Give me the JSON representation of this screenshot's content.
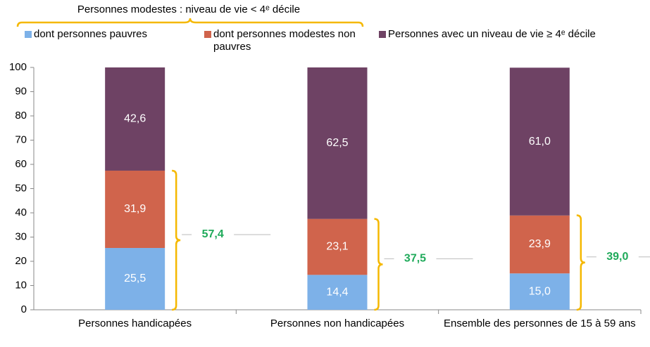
{
  "chart_data": {
    "type": "stacked_bar",
    "annotation": "Personnes modestes : niveau de vie < 4ᵉ décile",
    "categories": [
      "Personnes handicapées",
      "Personnes non handicapées",
      "Ensemble des personnes de 15 à 59 ans"
    ],
    "series": [
      {
        "name": "dont personnes pauvres",
        "color": "#7db1e8",
        "values": [
          25.5,
          14.4,
          15.0
        ],
        "value_labels": [
          "25,5",
          "14,4",
          "15,0"
        ]
      },
      {
        "name": "dont personnes modestes non pauvres",
        "color": "#d0644c",
        "values": [
          31.9,
          23.1,
          23.9
        ],
        "value_labels": [
          "31,9",
          "23,1",
          "23,9"
        ]
      },
      {
        "name": "Personnes avec un niveau de vie ≥ 4ᵉ décile",
        "color": "#6e4264",
        "values": [
          42.6,
          62.5,
          61.0
        ],
        "value_labels": [
          "42,6",
          "62,5",
          "61,0"
        ]
      }
    ],
    "totals": {
      "values": [
        57.4,
        37.5,
        39.0
      ],
      "value_labels": [
        "57,4",
        "37,5",
        "39,0"
      ]
    },
    "ylim": [
      0,
      100
    ],
    "yticks": [
      0,
      10,
      20,
      30,
      40,
      50,
      60,
      70,
      80,
      90,
      100
    ],
    "grid": false
  }
}
